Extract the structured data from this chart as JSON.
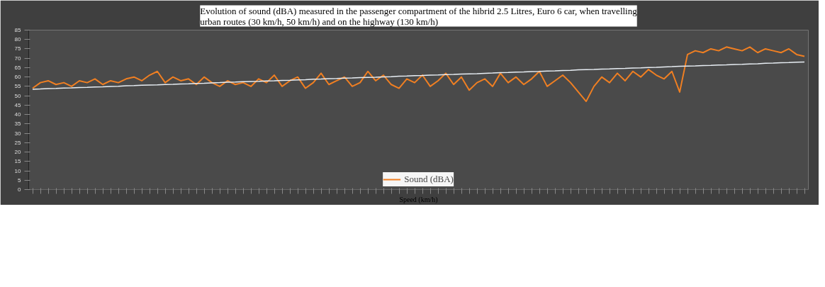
{
  "chart_data": {
    "type": "line",
    "title": "Evolution of sound (dBA) measured in the passenger compartment of the hibrid 2.5 Litres, Euro 6 car, when travelling urban routes (30 km/h, 50 km/h) and on the highway (130 km/h)",
    "xlabel": "Speed (km/h)",
    "categories": [
      null,
      null,
      null,
      null,
      null,
      null,
      null,
      null,
      null,
      null,
      null,
      null,
      null,
      null,
      null,
      null,
      null,
      null,
      null,
      null,
      null,
      null,
      null,
      null,
      null,
      null,
      null,
      null,
      null,
      null,
      null,
      null,
      null,
      null,
      null,
      null,
      null,
      null,
      null,
      null,
      null,
      null,
      null,
      null,
      null,
      null,
      null,
      null,
      null,
      null,
      null,
      null,
      null,
      null,
      null,
      null,
      null,
      null,
      null,
      null,
      null,
      null,
      null,
      null,
      null,
      null,
      null,
      null,
      null,
      null,
      null,
      null,
      null,
      null,
      null,
      null,
      null,
      null,
      null,
      null,
      null,
      null,
      null,
      null,
      null,
      null,
      null,
      null,
      null,
      null,
      null,
      null,
      null,
      null,
      null,
      null,
      null,
      null,
      null,
      null
    ],
    "series": [
      {
        "name": "Sound (dBA)",
        "color": "#f07f22",
        "values": [
          54,
          57,
          58,
          56,
          57,
          55,
          58,
          57,
          59,
          56,
          58,
          57,
          59,
          60,
          58,
          61,
          63,
          57,
          60,
          58,
          59,
          56,
          60,
          57,
          55,
          58,
          56,
          57,
          55,
          59,
          57,
          61,
          55,
          58,
          60,
          54,
          57,
          62,
          56,
          58,
          60,
          55,
          57,
          63,
          58,
          61,
          56,
          54,
          59,
          57,
          61,
          55,
          58,
          62,
          56,
          60,
          53,
          57,
          59,
          55,
          62,
          57,
          60,
          56,
          59,
          63,
          55,
          58,
          61,
          57,
          52,
          47,
          55,
          60,
          57,
          62,
          58,
          63,
          60,
          64,
          61,
          59,
          63,
          52,
          72,
          74,
          73,
          75,
          74,
          76,
          75,
          74,
          76,
          73,
          75,
          74,
          73,
          75,
          72,
          71
        ]
      },
      {
        "type": "line",
        "color": "#e8eef4",
        "values": [
          53.5,
          53.6,
          53.8,
          53.9,
          54.1,
          54.2,
          54.4,
          54.5,
          54.7,
          54.8,
          55.0,
          55.1,
          55.3,
          55.4,
          55.6,
          55.7,
          55.8,
          56.0,
          56.1,
          56.3,
          56.4,
          56.6,
          56.7,
          56.9,
          57.0,
          57.2,
          57.3,
          57.5,
          57.6,
          57.7,
          57.9,
          58.0,
          58.2,
          58.3,
          58.5,
          58.6,
          58.8,
          58.9,
          59.1,
          59.2,
          59.4,
          59.5,
          59.7,
          59.8,
          59.9,
          60.1,
          60.2,
          60.4,
          60.5,
          60.7,
          60.8,
          61.0,
          61.1,
          61.3,
          61.4,
          61.6,
          61.7,
          61.8,
          62.0,
          62.1,
          62.3,
          62.4,
          62.6,
          62.7,
          62.9,
          63.0,
          63.2,
          63.3,
          63.5,
          63.6,
          63.8,
          63.9,
          64.0,
          64.2,
          64.3,
          64.5,
          64.6,
          64.8,
          64.9,
          65.1,
          65.2,
          65.4,
          65.5,
          65.7,
          65.8,
          65.9,
          66.1,
          66.2,
          66.4,
          66.5,
          66.7,
          66.8,
          67.0,
          67.1,
          67.3,
          67.4,
          67.6,
          67.7,
          67.9,
          68.0
        ]
      }
    ],
    "ylim": [
      0,
      85
    ],
    "yticks": [
      0,
      5,
      10,
      15,
      20,
      25,
      30,
      35,
      40,
      45,
      50,
      55,
      60,
      65,
      70,
      75,
      80,
      85
    ],
    "tick_labels": "y",
    "grid": false,
    "legend": "bottom",
    "marker": "none",
    "line_style": "solid"
  }
}
